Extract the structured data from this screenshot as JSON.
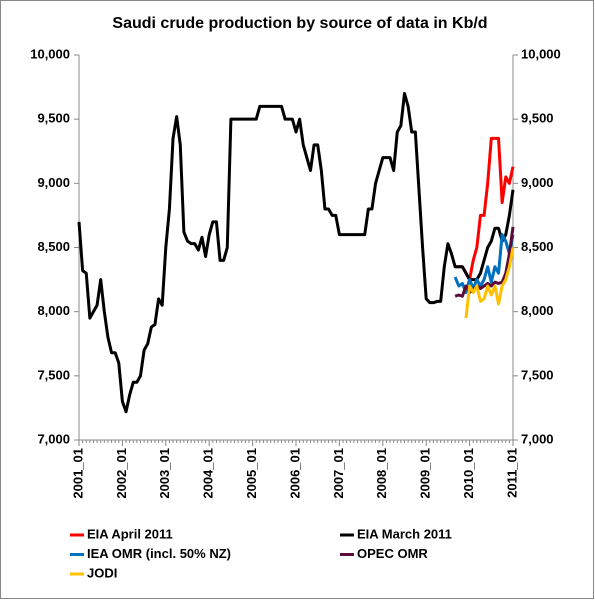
{
  "chart_data": {
    "type": "line",
    "title": "Saudi crude production by source of data in Kb/d",
    "categories": [
      "2001_01",
      null,
      null,
      null,
      null,
      null,
      null,
      null,
      null,
      null,
      null,
      null,
      "2002_01",
      null,
      null,
      null,
      null,
      null,
      null,
      null,
      null,
      null,
      null,
      null,
      "2003_01",
      null,
      null,
      null,
      null,
      null,
      null,
      null,
      null,
      null,
      null,
      null,
      "2004_01",
      null,
      null,
      null,
      null,
      null,
      null,
      null,
      null,
      null,
      null,
      null,
      "2005_01",
      null,
      null,
      null,
      null,
      null,
      null,
      null,
      null,
      null,
      null,
      null,
      "2006_01",
      null,
      null,
      null,
      null,
      null,
      null,
      null,
      null,
      null,
      null,
      null,
      "2007_01",
      null,
      null,
      null,
      null,
      null,
      null,
      null,
      null,
      null,
      null,
      null,
      "2008_01",
      null,
      null,
      null,
      null,
      null,
      null,
      null,
      null,
      null,
      null,
      null,
      "2009_01",
      null,
      null,
      null,
      null,
      null,
      null,
      null,
      null,
      null,
      null,
      null,
      "2010_01",
      null,
      null,
      null,
      null,
      null,
      null,
      null,
      null,
      null,
      null,
      null,
      "2011_01"
    ],
    "series": [
      {
        "name": "EIA April 2011",
        "color": "#ff0000",
        "values": [
          null,
          null,
          null,
          null,
          null,
          null,
          null,
          null,
          null,
          null,
          null,
          null,
          null,
          null,
          null,
          null,
          null,
          null,
          null,
          null,
          null,
          null,
          null,
          null,
          null,
          null,
          null,
          null,
          null,
          null,
          null,
          null,
          null,
          null,
          null,
          null,
          null,
          null,
          null,
          null,
          null,
          null,
          null,
          null,
          null,
          null,
          null,
          null,
          null,
          null,
          null,
          null,
          null,
          null,
          null,
          null,
          null,
          null,
          null,
          null,
          null,
          null,
          null,
          null,
          null,
          null,
          null,
          null,
          null,
          null,
          null,
          null,
          null,
          null,
          null,
          null,
          null,
          null,
          null,
          null,
          null,
          null,
          null,
          null,
          null,
          null,
          null,
          null,
          null,
          null,
          null,
          null,
          null,
          null,
          null,
          null,
          null,
          null,
          null,
          null,
          null,
          null,
          null,
          null,
          8350,
          8350,
          8350,
          8300,
          8250,
          8400,
          8500,
          8750,
          8750,
          9000,
          9350,
          9350,
          9350,
          8850,
          9050,
          9000,
          9130
        ]
      },
      {
        "name": "EIA March 2011",
        "color": "#000000",
        "values": [
          8700,
          8320,
          8300,
          7950,
          8000,
          8050,
          8250,
          8000,
          7800,
          7680,
          7680,
          7600,
          7300,
          7220,
          7350,
          7450,
          7450,
          7500,
          7700,
          7750,
          7880,
          7900,
          8100,
          8050,
          8500,
          8800,
          9350,
          9520,
          9300,
          8620,
          8550,
          8530,
          8530,
          8480,
          8580,
          8430,
          8600,
          8700,
          8700,
          8400,
          8400,
          8500,
          9500,
          9500,
          9500,
          9500,
          9500,
          9500,
          9500,
          9500,
          9600,
          9600,
          9600,
          9600,
          9600,
          9600,
          9600,
          9500,
          9500,
          9500,
          9400,
          9500,
          9300,
          9200,
          9100,
          9300,
          9300,
          9100,
          8800,
          8800,
          8750,
          8750,
          8600,
          8600,
          8600,
          8600,
          8600,
          8600,
          8600,
          8600,
          8800,
          8800,
          9000,
          9100,
          9200,
          9200,
          9200,
          9100,
          9400,
          9450,
          9700,
          9600,
          9400,
          9400,
          8950,
          8500,
          8100,
          8070,
          8070,
          8080,
          8080,
          8350,
          8530,
          8450,
          8350,
          8350,
          8350,
          8300,
          8250,
          8250,
          8250,
          8300,
          8400,
          8500,
          8550,
          8650,
          8650,
          8550,
          8600,
          8750,
          8950
        ]
      },
      {
        "name": "IEA OMR (incl. 50% NZ)",
        "color": "#0070c0",
        "values": [
          null,
          null,
          null,
          null,
          null,
          null,
          null,
          null,
          null,
          null,
          null,
          null,
          null,
          null,
          null,
          null,
          null,
          null,
          null,
          null,
          null,
          null,
          null,
          null,
          null,
          null,
          null,
          null,
          null,
          null,
          null,
          null,
          null,
          null,
          null,
          null,
          null,
          null,
          null,
          null,
          null,
          null,
          null,
          null,
          null,
          null,
          null,
          null,
          null,
          null,
          null,
          null,
          null,
          null,
          null,
          null,
          null,
          null,
          null,
          null,
          null,
          null,
          null,
          null,
          null,
          null,
          null,
          null,
          null,
          null,
          null,
          null,
          null,
          null,
          null,
          null,
          null,
          null,
          null,
          null,
          null,
          null,
          null,
          null,
          null,
          null,
          null,
          null,
          null,
          null,
          null,
          null,
          null,
          null,
          null,
          null,
          null,
          null,
          null,
          null,
          null,
          null,
          null,
          null,
          8270,
          8200,
          8220,
          8150,
          8250,
          8180,
          8250,
          8200,
          8250,
          8350,
          8230,
          8350,
          8300,
          8600,
          8550,
          8450,
          8600
        ]
      },
      {
        "name": "OPEC OMR",
        "color": "#5b0a3a",
        "values": [
          null,
          null,
          null,
          null,
          null,
          null,
          null,
          null,
          null,
          null,
          null,
          null,
          null,
          null,
          null,
          null,
          null,
          null,
          null,
          null,
          null,
          null,
          null,
          null,
          null,
          null,
          null,
          null,
          null,
          null,
          null,
          null,
          null,
          null,
          null,
          null,
          null,
          null,
          null,
          null,
          null,
          null,
          null,
          null,
          null,
          null,
          null,
          null,
          null,
          null,
          null,
          null,
          null,
          null,
          null,
          null,
          null,
          null,
          null,
          null,
          null,
          null,
          null,
          null,
          null,
          null,
          null,
          null,
          null,
          null,
          null,
          null,
          null,
          null,
          null,
          null,
          null,
          null,
          null,
          null,
          null,
          null,
          null,
          null,
          null,
          null,
          null,
          null,
          null,
          null,
          null,
          null,
          null,
          null,
          null,
          null,
          null,
          null,
          null,
          null,
          null,
          null,
          null,
          null,
          8120,
          8130,
          8120,
          8200,
          8150,
          8170,
          8200,
          8180,
          8200,
          8220,
          8200,
          8230,
          8220,
          8230,
          8300,
          8450,
          8660
        ]
      },
      {
        "name": "JODI",
        "color": "#ffc000",
        "values": [
          null,
          null,
          null,
          null,
          null,
          null,
          null,
          null,
          null,
          null,
          null,
          null,
          null,
          null,
          null,
          null,
          null,
          null,
          null,
          null,
          null,
          null,
          null,
          null,
          null,
          null,
          null,
          null,
          null,
          null,
          null,
          null,
          null,
          null,
          null,
          null,
          null,
          null,
          null,
          null,
          null,
          null,
          null,
          null,
          null,
          null,
          null,
          null,
          null,
          null,
          null,
          null,
          null,
          null,
          null,
          null,
          null,
          null,
          null,
          null,
          null,
          null,
          null,
          null,
          null,
          null,
          null,
          null,
          null,
          null,
          null,
          null,
          null,
          null,
          null,
          null,
          null,
          null,
          null,
          null,
          null,
          null,
          null,
          null,
          null,
          null,
          null,
          null,
          null,
          null,
          null,
          null,
          null,
          null,
          null,
          null,
          null,
          null,
          null,
          null,
          null,
          null,
          null,
          null,
          null,
          null,
          null,
          7950,
          8200,
          8150,
          8200,
          8080,
          8100,
          8200,
          8130,
          8200,
          8060,
          8200,
          8250,
          8350,
          8500
        ]
      }
    ],
    "ylim": [
      7000,
      10000
    ],
    "yticks": [
      {
        "value": 7000,
        "label": "7,000"
      },
      {
        "value": 7500,
        "label": "7,500"
      },
      {
        "value": 8000,
        "label": "8,000"
      },
      {
        "value": 8500,
        "label": "8,500"
      },
      {
        "value": 9000,
        "label": "9,000"
      },
      {
        "value": 9500,
        "label": "9,500"
      },
      {
        "value": 10000,
        "label": "10,000"
      }
    ],
    "y2lim": [
      7000,
      10000
    ],
    "y2ticks": [
      {
        "value": 7000,
        "label": "7,000"
      },
      {
        "value": 7500,
        "label": "7,500"
      },
      {
        "value": 8000,
        "label": "8,000"
      },
      {
        "value": 8500,
        "label": "8,500"
      },
      {
        "value": 9000,
        "label": "9,000"
      },
      {
        "value": 9500,
        "label": "9,500"
      },
      {
        "value": 10000,
        "label": "10,000"
      }
    ],
    "grid": false,
    "legend": "bottom"
  }
}
